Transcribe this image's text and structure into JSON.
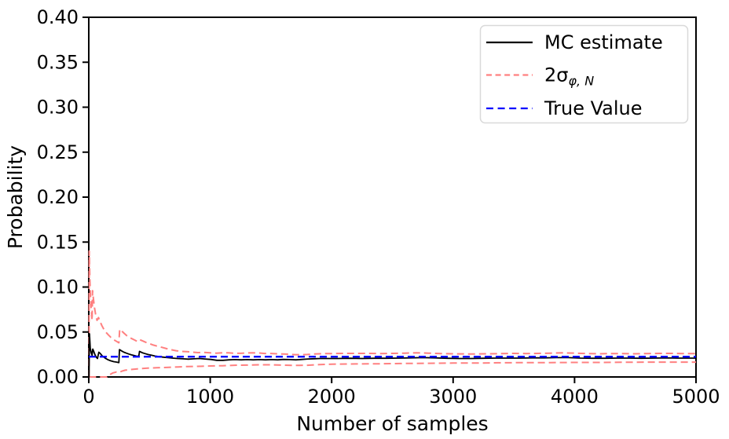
{
  "chart_data": {
    "type": "line",
    "title": "",
    "xlabel": "Number of samples",
    "ylabel": "Probability",
    "xlim": [
      0,
      5000
    ],
    "ylim": [
      0.0,
      0.4
    ],
    "grid": false,
    "xticks": [
      0,
      1000,
      2000,
      3000,
      4000,
      5000
    ],
    "xtick_labels": [
      "0",
      "1000",
      "2000",
      "3000",
      "4000",
      "5000"
    ],
    "yticks": [
      0.0,
      0.05,
      0.1,
      0.15,
      0.2,
      0.25,
      0.3,
      0.35,
      0.4
    ],
    "ytick_labels": [
      "0.00",
      "0.05",
      "0.10",
      "0.15",
      "0.20",
      "0.25",
      "0.30",
      "0.35",
      "0.40"
    ],
    "true_value": 0.0225,
    "colors": {
      "mc_estimate": "#000000",
      "sigma_band": "#ff8080",
      "true_value": "#0000ff"
    },
    "legend": {
      "position": "upper right",
      "entries": [
        {
          "label": "MC estimate",
          "color": "#000000",
          "style": "solid"
        },
        {
          "label": "2σ_φ,N",
          "label_main": "2σ",
          "label_sub": "φ, N",
          "color": "#ff8080",
          "style": "dashed"
        },
        {
          "label": "True Value",
          "color": "#0000ff",
          "style": "dashed"
        }
      ]
    },
    "series": [
      {
        "name": "2sigma upper bound",
        "color": "#ff8080",
        "style": "dashed",
        "width": 2,
        "points": [
          [
            2,
            0.0
          ],
          [
            4,
            0.14
          ],
          [
            9,
            0.108
          ],
          [
            15,
            0.088
          ],
          [
            21,
            0.074
          ],
          [
            27,
            0.063
          ],
          [
            31,
            0.096
          ],
          [
            38,
            0.087
          ],
          [
            47,
            0.077
          ],
          [
            57,
            0.069
          ],
          [
            68,
            0.063
          ],
          [
            80,
            0.066
          ],
          [
            92,
            0.062
          ],
          [
            108,
            0.057
          ],
          [
            124,
            0.053
          ],
          [
            140,
            0.05
          ],
          [
            160,
            0.047
          ],
          [
            182,
            0.044
          ],
          [
            205,
            0.0415
          ],
          [
            230,
            0.0395
          ],
          [
            248,
            0.038
          ],
          [
            255,
            0.053
          ],
          [
            272,
            0.051
          ],
          [
            292,
            0.0485
          ],
          [
            312,
            0.046
          ],
          [
            334,
            0.044
          ],
          [
            356,
            0.0425
          ],
          [
            380,
            0.041
          ],
          [
            400,
            0.0395
          ],
          [
            420,
            0.0415
          ],
          [
            445,
            0.04
          ],
          [
            470,
            0.0385
          ],
          [
            500,
            0.037
          ],
          [
            532,
            0.0355
          ],
          [
            565,
            0.0342
          ],
          [
            600,
            0.033
          ],
          [
            640,
            0.0315
          ],
          [
            680,
            0.0302
          ],
          [
            720,
            0.0292
          ],
          [
            762,
            0.0285
          ],
          [
            805,
            0.0282
          ],
          [
            850,
            0.0276
          ],
          [
            900,
            0.0271
          ],
          [
            950,
            0.0273
          ],
          [
            1000,
            0.0268
          ],
          [
            1050,
            0.0265
          ],
          [
            1100,
            0.0269
          ],
          [
            1150,
            0.0268
          ],
          [
            1200,
            0.0263
          ],
          [
            1250,
            0.0263
          ],
          [
            1300,
            0.0266
          ],
          [
            1350,
            0.0269
          ],
          [
            1400,
            0.0266
          ],
          [
            1450,
            0.0261
          ],
          [
            1500,
            0.0261
          ],
          [
            1550,
            0.0258
          ],
          [
            1600,
            0.0255
          ],
          [
            1650,
            0.0252
          ],
          [
            1700,
            0.0248
          ],
          [
            1750,
            0.0247
          ],
          [
            1800,
            0.025
          ],
          [
            1850,
            0.0255
          ],
          [
            1900,
            0.0258
          ],
          [
            1950,
            0.026
          ],
          [
            2000,
            0.026
          ],
          [
            2100,
            0.0262
          ],
          [
            2200,
            0.0262
          ],
          [
            2300,
            0.0262
          ],
          [
            2400,
            0.026
          ],
          [
            2500,
            0.0262
          ],
          [
            2600,
            0.0265
          ],
          [
            2700,
            0.0268
          ],
          [
            2800,
            0.0265
          ],
          [
            2900,
            0.026
          ],
          [
            3000,
            0.0258
          ],
          [
            3100,
            0.0256
          ],
          [
            3200,
            0.0256
          ],
          [
            3300,
            0.0258
          ],
          [
            3400,
            0.026
          ],
          [
            3500,
            0.0262
          ],
          [
            3600,
            0.026
          ],
          [
            3700,
            0.0262
          ],
          [
            3800,
            0.0265
          ],
          [
            3900,
            0.0268
          ],
          [
            4000,
            0.0265
          ],
          [
            4100,
            0.026
          ],
          [
            4200,
            0.0258
          ],
          [
            4300,
            0.026
          ],
          [
            4400,
            0.026
          ],
          [
            4500,
            0.0258
          ],
          [
            4600,
            0.026
          ],
          [
            4700,
            0.0262
          ],
          [
            4800,
            0.0262
          ],
          [
            4900,
            0.026
          ],
          [
            5000,
            0.026
          ]
        ]
      },
      {
        "name": "2sigma lower bound",
        "color": "#ff8080",
        "style": "dashed",
        "width": 2,
        "points": [
          [
            2,
            0.0
          ],
          [
            150,
            0.0
          ],
          [
            165,
            0.002
          ],
          [
            200,
            0.0045
          ],
          [
            228,
            0.0055
          ],
          [
            250,
            0.005
          ],
          [
            272,
            0.0065
          ],
          [
            300,
            0.0075
          ],
          [
            330,
            0.008
          ],
          [
            365,
            0.0085
          ],
          [
            400,
            0.009
          ],
          [
            450,
            0.0095
          ],
          [
            505,
            0.01
          ],
          [
            560,
            0.0102
          ],
          [
            620,
            0.0105
          ],
          [
            680,
            0.0108
          ],
          [
            740,
            0.0112
          ],
          [
            800,
            0.0115
          ],
          [
            900,
            0.0118
          ],
          [
            1000,
            0.0122
          ],
          [
            1100,
            0.0125
          ],
          [
            1200,
            0.013
          ],
          [
            1300,
            0.0132
          ],
          [
            1400,
            0.0135
          ],
          [
            1500,
            0.0135
          ],
          [
            1600,
            0.0132
          ],
          [
            1700,
            0.0128
          ],
          [
            1800,
            0.013
          ],
          [
            1900,
            0.0138
          ],
          [
            2000,
            0.0142
          ],
          [
            2200,
            0.0145
          ],
          [
            2400,
            0.0147
          ],
          [
            2600,
            0.015
          ],
          [
            2800,
            0.0152
          ],
          [
            3000,
            0.0155
          ],
          [
            3200,
            0.0155
          ],
          [
            3400,
            0.0158
          ],
          [
            3600,
            0.016
          ],
          [
            3800,
            0.016
          ],
          [
            4000,
            0.0162
          ],
          [
            4200,
            0.0162
          ],
          [
            4400,
            0.0163
          ],
          [
            4600,
            0.0165
          ],
          [
            4800,
            0.0165
          ],
          [
            5000,
            0.0165
          ]
        ]
      },
      {
        "name": "MC estimate",
        "color": "#000000",
        "style": "solid",
        "width": 1.8,
        "points": [
          [
            2,
            0.0
          ],
          [
            6,
            0.048
          ],
          [
            12,
            0.032
          ],
          [
            20,
            0.027
          ],
          [
            27,
            0.024
          ],
          [
            33,
            0.031
          ],
          [
            42,
            0.028
          ],
          [
            52,
            0.0245
          ],
          [
            62,
            0.022
          ],
          [
            72,
            0.0205
          ],
          [
            83,
            0.0275
          ],
          [
            95,
            0.026
          ],
          [
            110,
            0.0235
          ],
          [
            125,
            0.022
          ],
          [
            140,
            0.0205
          ],
          [
            160,
            0.019
          ],
          [
            180,
            0.018
          ],
          [
            205,
            0.017
          ],
          [
            230,
            0.0165
          ],
          [
            248,
            0.016
          ],
          [
            253,
            0.0305
          ],
          [
            270,
            0.029
          ],
          [
            290,
            0.0275
          ],
          [
            310,
            0.0265
          ],
          [
            330,
            0.0255
          ],
          [
            352,
            0.0245
          ],
          [
            375,
            0.0238
          ],
          [
            398,
            0.023
          ],
          [
            412,
            0.0232
          ],
          [
            418,
            0.0285
          ],
          [
            440,
            0.027
          ],
          [
            462,
            0.026
          ],
          [
            488,
            0.025
          ],
          [
            515,
            0.0242
          ],
          [
            545,
            0.0232
          ],
          [
            580,
            0.0225
          ],
          [
            615,
            0.022
          ],
          [
            650,
            0.0215
          ],
          [
            690,
            0.021
          ],
          [
            730,
            0.0205
          ],
          [
            775,
            0.0202
          ],
          [
            820,
            0.0198
          ],
          [
            865,
            0.0202
          ],
          [
            910,
            0.0205
          ],
          [
            955,
            0.02
          ],
          [
            1005,
            0.0195
          ],
          [
            1055,
            0.0185
          ],
          [
            1105,
            0.0185
          ],
          [
            1155,
            0.019
          ],
          [
            1205,
            0.0193
          ],
          [
            1255,
            0.019
          ],
          [
            1305,
            0.0193
          ],
          [
            1355,
            0.019
          ],
          [
            1405,
            0.0193
          ],
          [
            1455,
            0.019
          ],
          [
            1505,
            0.0193
          ],
          [
            1555,
            0.019
          ],
          [
            1605,
            0.0195
          ],
          [
            1655,
            0.0193
          ],
          [
            1705,
            0.019
          ],
          [
            1755,
            0.0195
          ],
          [
            1805,
            0.02
          ],
          [
            1855,
            0.0203
          ],
          [
            1905,
            0.0205
          ],
          [
            1955,
            0.0205
          ],
          [
            2050,
            0.0205
          ],
          [
            2150,
            0.0208
          ],
          [
            2250,
            0.0205
          ],
          [
            2350,
            0.0208
          ],
          [
            2450,
            0.0208
          ],
          [
            2550,
            0.021
          ],
          [
            2650,
            0.0212
          ],
          [
            2750,
            0.0215
          ],
          [
            2850,
            0.0212
          ],
          [
            2950,
            0.0208
          ],
          [
            3050,
            0.0205
          ],
          [
            3150,
            0.0205
          ],
          [
            3250,
            0.0208
          ],
          [
            3350,
            0.021
          ],
          [
            3450,
            0.021
          ],
          [
            3550,
            0.021
          ],
          [
            3650,
            0.0212
          ],
          [
            3750,
            0.0212
          ],
          [
            3850,
            0.0215
          ],
          [
            3950,
            0.0215
          ],
          [
            4050,
            0.021
          ],
          [
            4150,
            0.0208
          ],
          [
            4250,
            0.0208
          ],
          [
            4350,
            0.021
          ],
          [
            4450,
            0.021
          ],
          [
            4550,
            0.0208
          ],
          [
            4650,
            0.021
          ],
          [
            4750,
            0.0212
          ],
          [
            4850,
            0.021
          ],
          [
            4950,
            0.021
          ],
          [
            5000,
            0.021
          ]
        ]
      },
      {
        "name": "True Value",
        "color": "#0000ff",
        "style": "dashed",
        "width": 2.4,
        "points": [
          [
            0,
            0.0225
          ],
          [
            5000,
            0.0225
          ]
        ]
      }
    ]
  }
}
